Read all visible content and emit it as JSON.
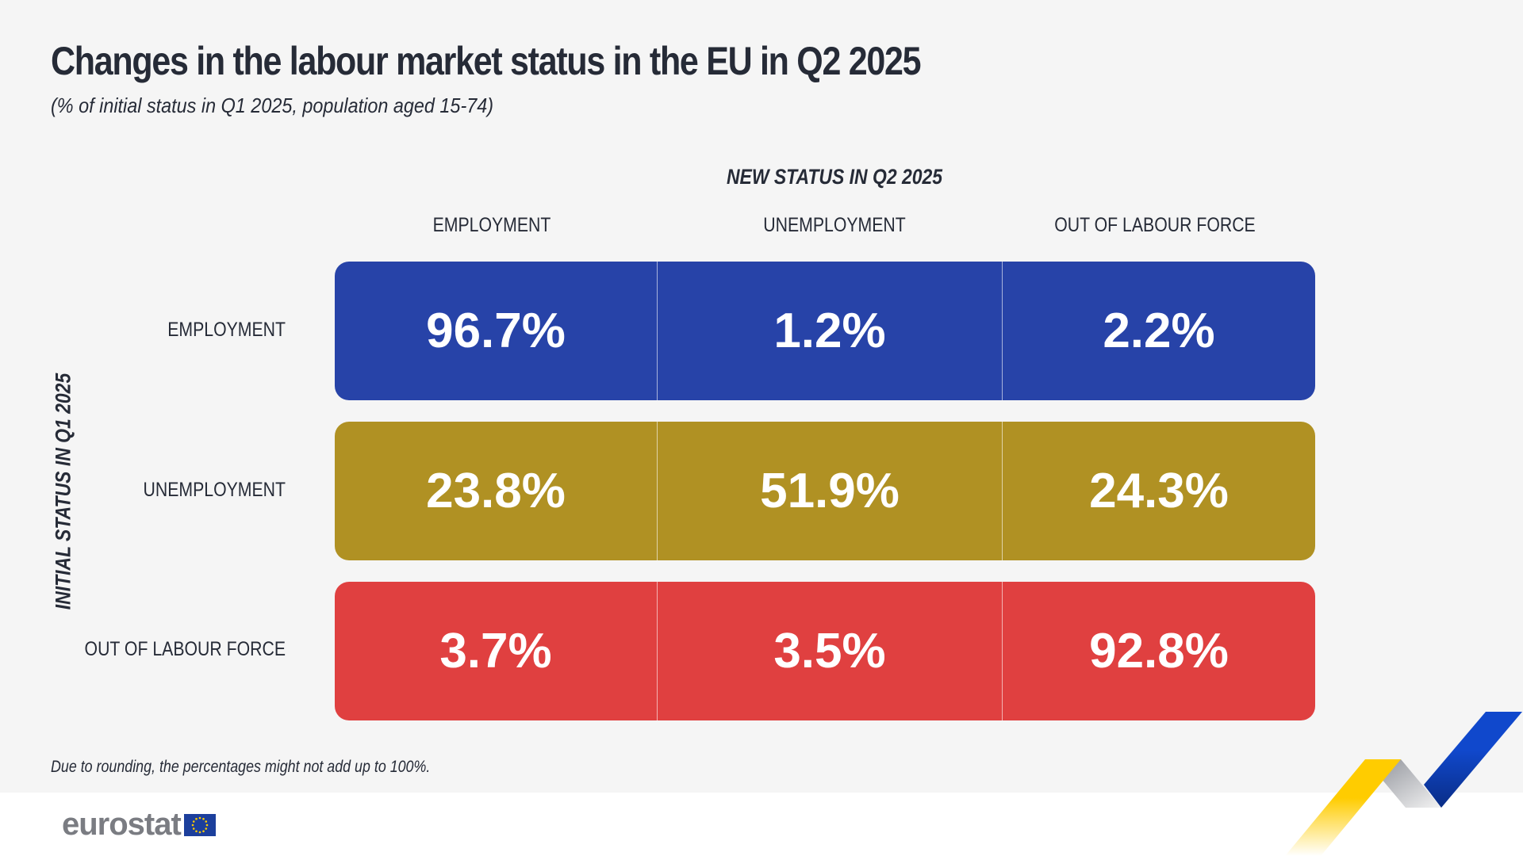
{
  "title": "Changes in the labour market status in the EU in Q2 2025",
  "subtitle": "(% of initial status in Q1 2025, population aged 15-74)",
  "footnote": "Due to rounding, the percentages might not add up to 100%.",
  "logo": "eurostat",
  "colors": {
    "employment": "#2743a8",
    "unemployment": "#b09123",
    "out_of_labour_force": "#e04040"
  },
  "chart_data": {
    "type": "table",
    "column_group_label": "NEW STATUS IN Q2 2025",
    "row_group_label": "INITIAL STATUS IN Q1 2025",
    "columns": [
      "EMPLOYMENT",
      "UNEMPLOYMENT",
      "OUT OF LABOUR FORCE"
    ],
    "rows": [
      {
        "label": "EMPLOYMENT",
        "values": [
          "96.7%",
          "1.2%",
          "2.2%"
        ]
      },
      {
        "label": "UNEMPLOYMENT",
        "values": [
          "23.8%",
          "51.9%",
          "24.3%"
        ]
      },
      {
        "label": "OUT OF LABOUR FORCE",
        "values": [
          "3.7%",
          "3.5%",
          "92.8%"
        ]
      }
    ]
  }
}
